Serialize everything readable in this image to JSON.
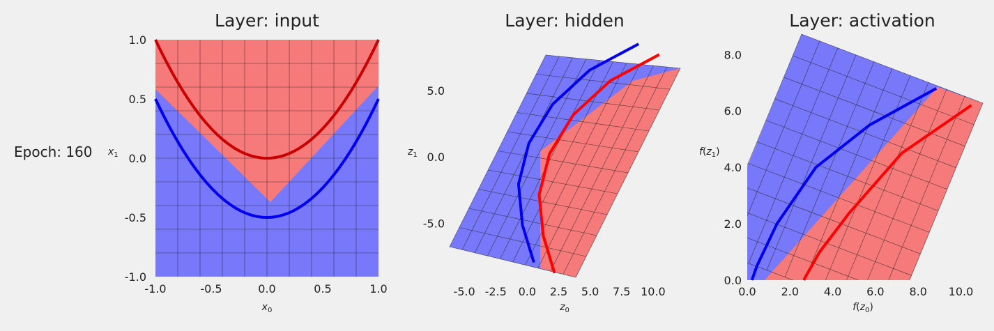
{
  "epoch_label": "Epoch: 160",
  "colors": {
    "background": "#f0f0f0",
    "region_red": "#f77a7a",
    "region_blue": "#7878fa",
    "curve_red_input": "#c80000",
    "curve_blue": "#0000ee",
    "curve_red": "#ff0000",
    "grid": "#1e1e1e"
  },
  "chart_data": [
    {
      "type": "line",
      "title": "Layer: input",
      "xlabel": "x_0",
      "ylabel": "x_1",
      "xlim": [
        -1.0,
        1.0
      ],
      "ylim": [
        -1.0,
        1.0
      ],
      "xticks": [
        "-1.0",
        "-0.5",
        "0.0",
        "0.5",
        "1.0"
      ],
      "yticks": [
        "-1.0",
        "-0.5",
        "0.0",
        "0.5",
        "1.0"
      ],
      "grid": "deformed grid overlay",
      "boundary": [
        [
          -1.0,
          0.58
        ],
        [
          0.03,
          -0.38
        ],
        [
          1.0,
          0.6
        ]
      ],
      "series": [
        {
          "color": "red",
          "equation": "x1 = x0^2",
          "x": [
            -1.0,
            -0.5,
            0.0,
            0.5,
            1.0
          ],
          "y": [
            1.0,
            0.25,
            0.0,
            0.25,
            1.0
          ]
        },
        {
          "color": "blue",
          "equation": "x1 = x0^2 - 0.5",
          "x": [
            -1.0,
            -0.5,
            0.0,
            0.5,
            1.0
          ],
          "y": [
            0.5,
            -0.25,
            -0.5,
            -0.25,
            0.5
          ]
        }
      ]
    },
    {
      "type": "line",
      "title": "Layer: hidden",
      "xlabel": "z_0",
      "ylabel": "z_1",
      "xlim": [
        -6.0,
        11.5
      ],
      "ylim": [
        -8.6,
        8.2
      ],
      "xticks": [
        "-5.0",
        "-2.5",
        "0.0",
        "2.5",
        "5.0",
        "7.5",
        "10.0"
      ],
      "yticks": [
        "-5.0",
        "0.0",
        "5.0"
      ],
      "grid": "deformed grid overlay",
      "boundary_z0": 0.75,
      "series": [
        {
          "color": "blue",
          "x": [
            0.53,
            -0.38,
            -0.69,
            0.13,
            2.02,
            4.96,
            8.85
          ],
          "y": [
            -7.95,
            -5.13,
            -2.05,
            1.03,
            3.97,
            6.54,
            8.51
          ]
        },
        {
          "color": "red",
          "x": [
            2.17,
            1.27,
            0.95,
            1.77,
            3.66,
            6.6,
            10.49
          ],
          "y": [
            -8.75,
            -5.93,
            -2.85,
            0.23,
            3.17,
            5.74,
            7.71
          ]
        }
      ]
    },
    {
      "type": "line",
      "title": "Layer: activation",
      "xlabel": "f(z_0)",
      "ylabel": "f(z_1)",
      "xlim": [
        0.0,
        10.8
      ],
      "ylim": [
        0.0,
        8.7
      ],
      "xticks": [
        "0.0",
        "2.0",
        "4.0",
        "6.0",
        "8.0",
        "10.0"
      ],
      "yticks": [
        "0.0",
        "2.0",
        "4.0",
        "6.0",
        "8.0"
      ],
      "grid": "deformed grid overlay",
      "series": [
        {
          "color": "blue",
          "x": [
            0.22,
            0.45,
            1.39,
            3.21,
            5.72,
            8.85
          ],
          "y": [
            0.0,
            0.5,
            2.0,
            4.0,
            5.5,
            6.8
          ]
        },
        {
          "color": "red",
          "x": [
            2.65,
            2.72,
            3.39,
            4.75,
            7.23,
            10.49
          ],
          "y": [
            0.0,
            0.11,
            1.0,
            2.36,
            4.5,
            6.2
          ]
        }
      ]
    }
  ]
}
